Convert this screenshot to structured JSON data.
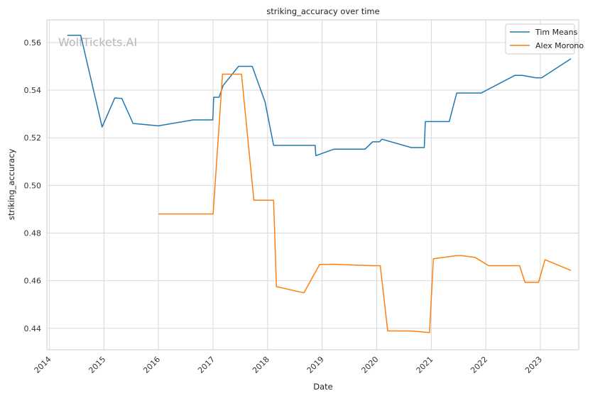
{
  "watermark": "WolfTickets.AI",
  "colors": {
    "tim_means": "#1f77b4",
    "alex_morono": "#ff7f0e",
    "grid": "#d9d9d9",
    "frame": "#cccccc"
  },
  "chart_data": {
    "type": "line",
    "title": "striking_accuracy over time",
    "xlabel": "Date",
    "ylabel": "striking_accuracy",
    "x_ticks": [
      "2014",
      "2015",
      "2016",
      "2017",
      "2018",
      "2019",
      "2020",
      "2021",
      "2022",
      "2023"
    ],
    "y_ticks": [
      "0.44",
      "0.46",
      "0.48",
      "0.50",
      "0.52",
      "0.54",
      "0.56"
    ],
    "xlim": [
      "2013-12-15",
      "2023-09-15"
    ],
    "ylim": [
      0.431,
      0.5695
    ],
    "grid": true,
    "legend_position": "top-right",
    "series": [
      {
        "name": "Tim Means",
        "color": "#1f77b4",
        "points": [
          [
            "2014-05-01",
            0.563
          ],
          [
            "2014-07-30",
            0.563
          ],
          [
            "2014-12-20",
            0.5245
          ],
          [
            "2015-03-15",
            0.5367
          ],
          [
            "2015-05-01",
            0.5365
          ],
          [
            "2015-07-15",
            0.526
          ],
          [
            "2016-01-01",
            0.525
          ],
          [
            "2016-08-20",
            0.5275
          ],
          [
            "2016-12-30",
            0.5275
          ],
          [
            "2017-01-05",
            0.537
          ],
          [
            "2017-02-10",
            0.537
          ],
          [
            "2017-03-10",
            0.542
          ],
          [
            "2017-06-20",
            0.55
          ],
          [
            "2017-09-20",
            0.55
          ],
          [
            "2017-12-15",
            0.535
          ],
          [
            "2018-02-10",
            0.5168
          ],
          [
            "2018-11-15",
            0.5168
          ],
          [
            "2018-11-20",
            0.5125
          ],
          [
            "2019-03-20",
            0.5152
          ],
          [
            "2019-10-15",
            0.5152
          ],
          [
            "2019-12-05",
            0.5183
          ],
          [
            "2020-01-20",
            0.5183
          ],
          [
            "2020-02-05",
            0.5194
          ],
          [
            "2020-08-20",
            0.5159
          ],
          [
            "2020-11-15",
            0.5159
          ],
          [
            "2020-11-22",
            0.5268
          ],
          [
            "2021-05-01",
            0.5268
          ],
          [
            "2021-06-20",
            0.5388
          ],
          [
            "2021-12-01",
            0.5388
          ],
          [
            "2022-07-15",
            0.5462
          ],
          [
            "2022-09-01",
            0.5462
          ],
          [
            "2022-12-01",
            0.5452
          ],
          [
            "2023-01-10",
            0.5452
          ],
          [
            "2023-07-25",
            0.5532
          ]
        ]
      },
      {
        "name": "Alex Morono",
        "color": "#ff7f0e",
        "points": [
          [
            "2016-01-01",
            0.488
          ],
          [
            "2017-01-01",
            0.488
          ],
          [
            "2017-03-05",
            0.5467
          ],
          [
            "2017-07-10",
            0.5467
          ],
          [
            "2017-10-01",
            0.4938
          ],
          [
            "2018-02-10",
            0.4938
          ],
          [
            "2018-03-01",
            0.4575
          ],
          [
            "2018-09-01",
            0.4549
          ],
          [
            "2018-12-15",
            0.4668
          ],
          [
            "2019-03-15",
            0.4669
          ],
          [
            "2019-12-01",
            0.4663
          ],
          [
            "2020-01-25",
            0.4663
          ],
          [
            "2020-03-15",
            0.4389
          ],
          [
            "2020-08-15",
            0.4389
          ],
          [
            "2020-12-20",
            0.4382
          ],
          [
            "2021-01-15",
            0.4692
          ],
          [
            "2021-06-15",
            0.4705
          ],
          [
            "2021-07-25",
            0.4705
          ],
          [
            "2021-10-20",
            0.4698
          ],
          [
            "2022-01-20",
            0.4663
          ],
          [
            "2022-08-15",
            0.4663
          ],
          [
            "2022-09-20",
            0.4593
          ],
          [
            "2022-12-20",
            0.4593
          ],
          [
            "2023-02-01",
            0.4688
          ],
          [
            "2023-07-25",
            0.4643
          ]
        ]
      }
    ]
  }
}
